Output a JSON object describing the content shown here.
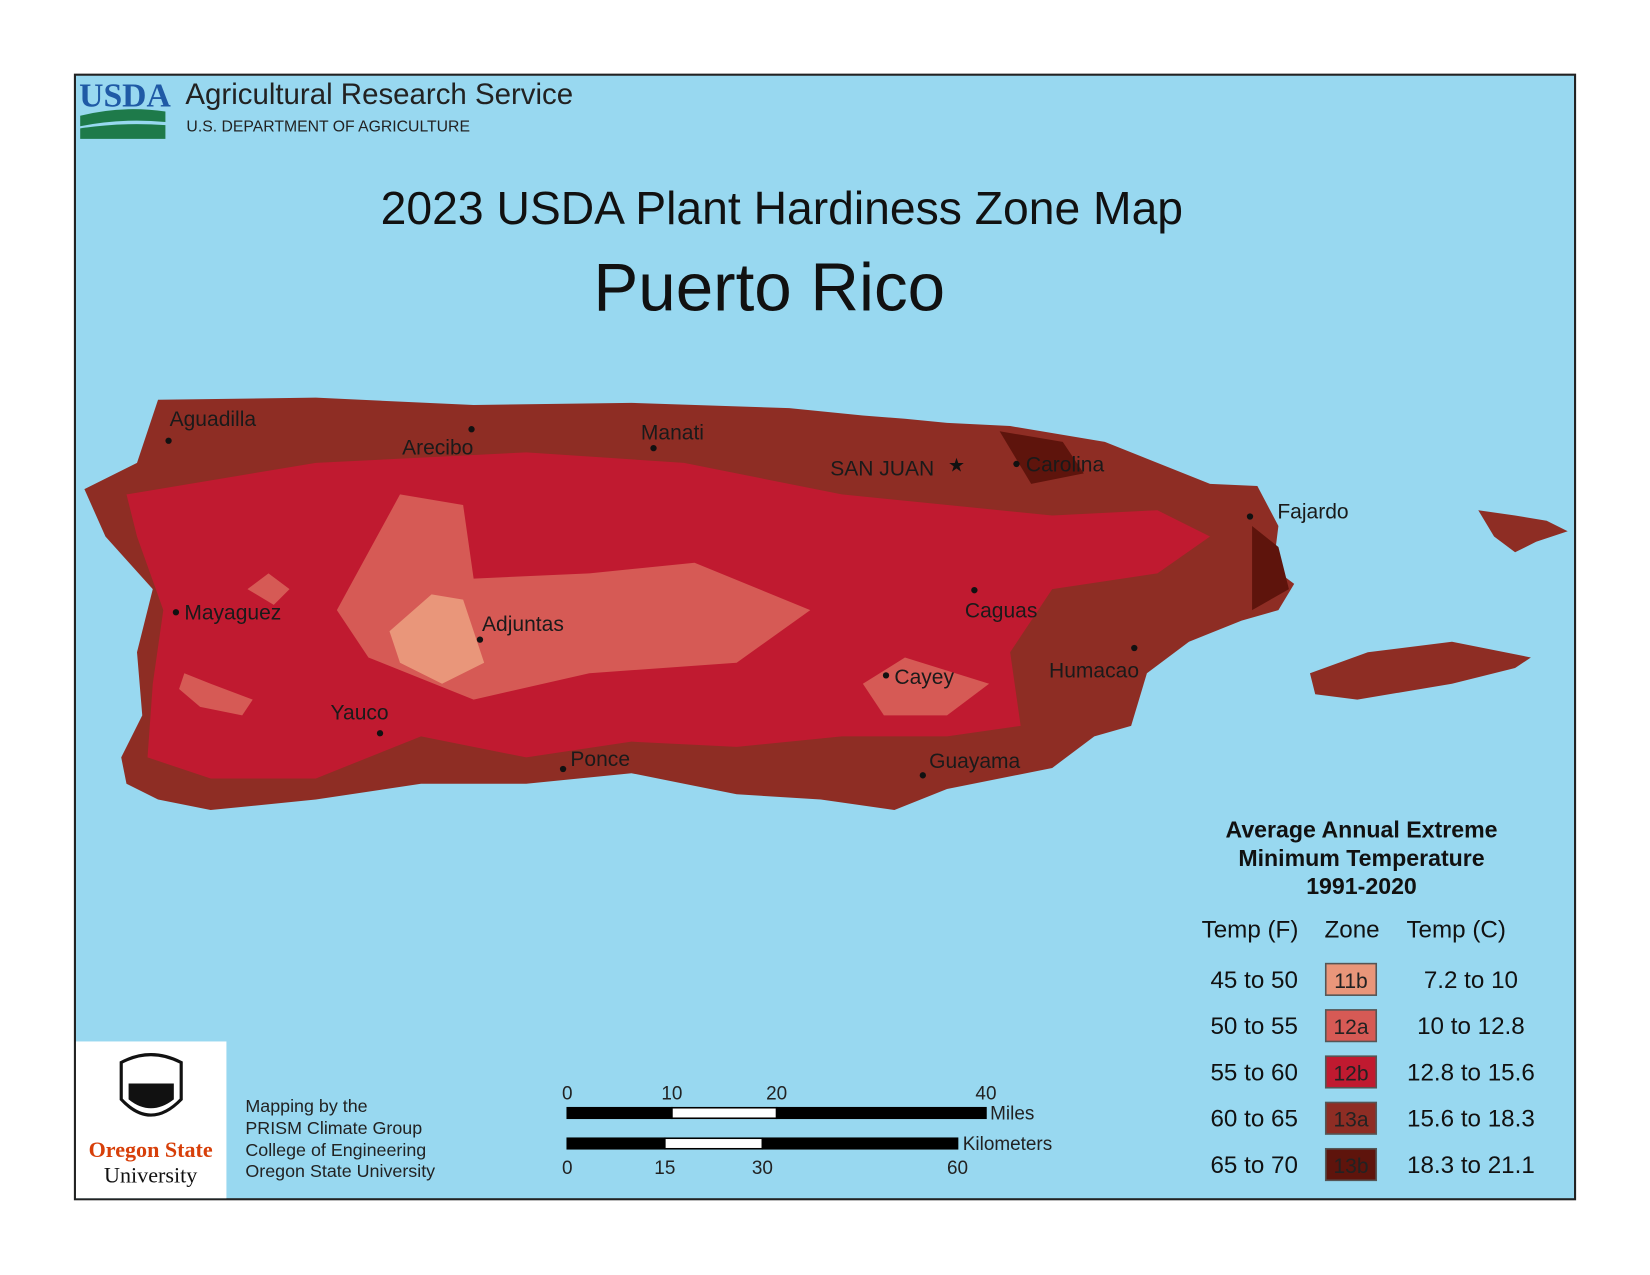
{
  "header": {
    "agency_logo": "USDA",
    "agency": "Agricultural Research Service",
    "department": "U.S. DEPARTMENT OF AGRICULTURE"
  },
  "title": "2023 USDA Plant Hardiness Zone Map",
  "subtitle": "Puerto Rico",
  "cities": [
    "Aguadilla",
    "Arecibo",
    "Manati",
    "SAN JUAN",
    "Carolina",
    "Fajardo",
    "Mayaguez",
    "Adjuntas",
    "Caguas",
    "Cayey",
    "Humacao",
    "Yauco",
    "Ponce",
    "Guayama"
  ],
  "legend": {
    "title": [
      "Average Annual Extreme",
      "Minimum Temperature",
      "1991-2020"
    ],
    "columns": [
      "Temp (F)",
      "Zone",
      "Temp (C)"
    ],
    "rows": [
      {
        "temp_f": "45 to 50",
        "zone": "11b",
        "temp_c": "7.2 to 10",
        "color": "#e9967a"
      },
      {
        "temp_f": "50 to 55",
        "zone": "12a",
        "temp_c": "10 to 12.8",
        "color": "#d65a55"
      },
      {
        "temp_f": "55 to 60",
        "zone": "12b",
        "temp_c": "12.8 to 15.6",
        "color": "#c01a30"
      },
      {
        "temp_f": "60 to 65",
        "zone": "13a",
        "temp_c": "15.6 to 18.3",
        "color": "#8e2d24"
      },
      {
        "temp_f": "65 to 70",
        "zone": "13b",
        "temp_c": "18.3 to 21.1",
        "color": "#5e140c"
      }
    ]
  },
  "scale_bar": {
    "miles": {
      "ticks": [
        0,
        10,
        20,
        40
      ],
      "unit": "Miles"
    },
    "kilometers": {
      "ticks": [
        0,
        15,
        30,
        60
      ],
      "unit": "Kilometers"
    }
  },
  "credits": {
    "logo": [
      "Oregon State",
      "University"
    ],
    "lines": [
      "Mapping by the",
      "PRISM Climate Group",
      "College of Engineering",
      "Oregon State University"
    ]
  }
}
